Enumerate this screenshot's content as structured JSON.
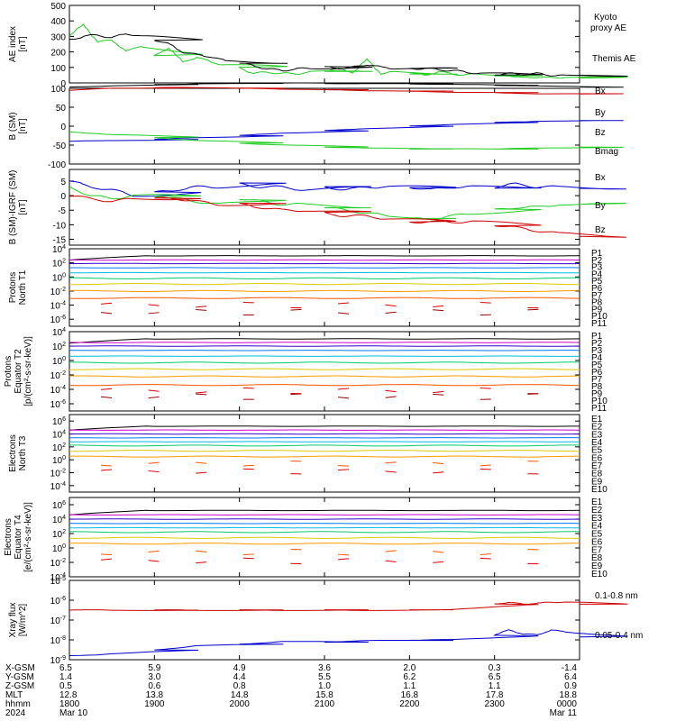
{
  "colors": {
    "black": "#000000",
    "green": "#22cc22",
    "blue": "#0000cc",
    "red": "#cc0000",
    "ch": [
      "#000000",
      "#cc00cc",
      "#3300cc",
      "#0077ff",
      "#00bbdd",
      "#00cc66",
      "#ddcc00",
      "#ff9900",
      "#ff5500",
      "#dd0000",
      "#990000"
    ]
  },
  "footer": {
    "rows": [
      {
        "label": "X-GSM",
        "values": [
          "6.5",
          "5.9",
          "4.9",
          "3.6",
          "2.0",
          "0.3",
          "-1.4"
        ]
      },
      {
        "label": "Y-GSM",
        "values": [
          "1.4",
          "3.0",
          "4.4",
          "5.5",
          "6.2",
          "6.5",
          "6.4"
        ]
      },
      {
        "label": "Z-GSM",
        "values": [
          "0.5",
          "0.6",
          "0.8",
          "1.0",
          "1.1",
          "1.1",
          "0.9"
        ]
      },
      {
        "label": "MLT",
        "values": [
          "12.8",
          "13.8",
          "14.8",
          "15.8",
          "16.8",
          "17.8",
          "18.8"
        ]
      },
      {
        "label": "hhmm",
        "values": [
          "1800",
          "1900",
          "2000",
          "2100",
          "2200",
          "2300",
          "0000"
        ]
      },
      {
        "label": "2024",
        "values": [
          "Mar 10",
          "",
          "",
          "",
          "",
          "",
          "Mar 11"
        ]
      }
    ]
  },
  "chart_data": [
    {
      "type": "line",
      "panel": "ae",
      "ylabel": [
        "AE index",
        "[nT]"
      ],
      "ylim": [
        0,
        500
      ],
      "yticks": [
        "500",
        "400",
        "300",
        "200",
        "100",
        "0"
      ],
      "x": [
        1800,
        1810,
        1820,
        1830,
        1840,
        1850,
        1900,
        1910,
        1920,
        1930,
        1940,
        1950,
        2000,
        2010,
        2020,
        2030,
        2040,
        2050,
        2100,
        2110,
        2120,
        2130,
        2140,
        2150,
        2200,
        2210,
        2220,
        2230,
        2240,
        2250,
        2300,
        2310,
        2320,
        2330,
        2340,
        2350,
        2400
      ],
      "series": [
        {
          "name": "Kyoto proxy AE",
          "color": "#22cc22",
          "values": [
            300,
            380,
            260,
            280,
            200,
            240,
            170,
            230,
            130,
            170,
            130,
            120,
            100,
            60,
            70,
            60,
            60,
            70,
            80,
            90,
            70,
            150,
            60,
            70,
            60,
            50,
            70,
            60,
            50,
            60,
            40,
            50,
            30,
            40,
            30,
            40,
            30
          ]
        },
        {
          "name": "Themis AE",
          "color": "#000000",
          "values": [
            280,
            300,
            310,
            290,
            320,
            300,
            280,
            250,
            200,
            180,
            170,
            140,
            130,
            110,
            90,
            80,
            90,
            95,
            100,
            95,
            100,
            120,
            100,
            95,
            90,
            95,
            85,
            80,
            70,
            60,
            55,
            60,
            55,
            60,
            50,
            45,
            50
          ]
        }
      ]
    },
    {
      "type": "line",
      "panel": "bsm",
      "ylabel": [
        "B (SM)",
        "[nT]"
      ],
      "ylim": [
        -100,
        100
      ],
      "yticks": [
        "100",
        "50",
        "0",
        "-50",
        "-100"
      ],
      "x": [
        1800,
        1830,
        1900,
        1930,
        2000,
        2030,
        2100,
        2130,
        2200,
        2230,
        2300,
        2330,
        2400
      ],
      "series": [
        {
          "name": "Bx",
          "color": "#0000cc",
          "values": [
            -40,
            -38,
            -35,
            -30,
            -25,
            -18,
            -12,
            -6,
            0,
            5,
            10,
            13,
            15
          ]
        },
        {
          "name": "By",
          "color": "#22cc22",
          "values": [
            -15,
            -22,
            -30,
            -38,
            -45,
            -50,
            -55,
            -58,
            -60,
            -60,
            -60,
            -58,
            -55
          ]
        },
        {
          "name": "Bz",
          "color": "#cc0000",
          "values": [
            95,
            100,
            102,
            102,
            100,
            98,
            96,
            94,
            92,
            90,
            88,
            86,
            85
          ]
        },
        {
          "name": "Bmag",
          "color": "#000000",
          "values": [
            103,
            107,
            110,
            112,
            113,
            114,
            113,
            112,
            112,
            110,
            108,
            106,
            103
          ]
        }
      ]
    },
    {
      "type": "line",
      "panel": "dbsm",
      "ylabel": [
        "B (SM)-IGRF (SM)",
        "[nT]"
      ],
      "ylim": [
        -17,
        9
      ],
      "yticks": [
        "5",
        "0",
        "-5",
        "-10",
        "-15"
      ],
      "x": [
        1800,
        1815,
        1830,
        1845,
        1900,
        1915,
        1930,
        1945,
        2000,
        2015,
        2030,
        2045,
        2100,
        2115,
        2130,
        2145,
        2200,
        2215,
        2230,
        2245,
        2300,
        2315,
        2330,
        2345,
        2400
      ],
      "series": [
        {
          "name": "Bx",
          "color": "#0000cc",
          "values": [
            5,
            3,
            2,
            0,
            1,
            2,
            3,
            3,
            4,
            3,
            3,
            2,
            3,
            2,
            3,
            3,
            3,
            2,
            3,
            3,
            3,
            4,
            3,
            3,
            2.5
          ]
        },
        {
          "name": "By",
          "color": "#22cc22",
          "values": [
            3,
            0,
            -1,
            0,
            0,
            -1,
            -2,
            -3,
            -1,
            -2,
            -3,
            -3,
            -4,
            -5,
            -6,
            -7,
            -8,
            -8,
            -7,
            -6,
            -5,
            -4,
            -4,
            -3,
            -3
          ]
        },
        {
          "name": "Bz",
          "color": "#cc0000",
          "values": [
            0,
            -1,
            -2,
            -1,
            -1,
            -1,
            -2,
            -3,
            -3,
            -4,
            -5,
            -5,
            -6,
            -7,
            -7,
            -8,
            -9,
            -9,
            -9,
            -9,
            -10,
            -11,
            -12,
            -13,
            -14
          ]
        }
      ]
    },
    {
      "type": "line",
      "panel": "pn",
      "ylabel": [
        "Protons",
        "North T1"
      ],
      "ylog": true,
      "ylim_exp": [
        -7,
        4
      ],
      "ytick_exp": [
        4,
        2,
        0,
        -2,
        -4,
        -6
      ],
      "channels": [
        "P1",
        "P2",
        "P3",
        "P4",
        "P5",
        "P6",
        "P7",
        "P8",
        "P9",
        "P10",
        "P11"
      ],
      "levels_exp": [
        3.0,
        2.4,
        1.9,
        1.3,
        0.6,
        -0.2,
        -1.0,
        -2.0,
        -3.0,
        -4.0,
        -5.0
      ]
    },
    {
      "type": "line",
      "panel": "pe",
      "ylabel": [
        "Protons",
        "Equator T2",
        "[p/(cm²-s-sr-keV)]"
      ],
      "ylog": true,
      "ylim_exp": [
        -7,
        4
      ],
      "ytick_exp": [
        4,
        2,
        0,
        -2,
        -4,
        -6
      ],
      "channels": [
        "P1",
        "P2",
        "P3",
        "P4",
        "P5",
        "P6",
        "P7",
        "P8",
        "P9",
        "P10",
        "P11"
      ],
      "levels_exp": [
        3.0,
        2.5,
        2.0,
        1.4,
        0.6,
        -0.3,
        -1.2,
        -2.2,
        -3.4,
        -4.2,
        -5.0
      ]
    },
    {
      "type": "line",
      "panel": "en",
      "ylabel": [
        "Electrons",
        "North T3"
      ],
      "ylog": true,
      "ylim_exp": [
        -5,
        7
      ],
      "ytick_exp": [
        6,
        4,
        2,
        0,
        -2,
        -4
      ],
      "channels": [
        "E1",
        "E2",
        "E3",
        "E4",
        "E5",
        "E6",
        "E7",
        "E8",
        "E9",
        "E10"
      ],
      "levels_exp": [
        5.2,
        4.6,
        4.0,
        3.4,
        2.8,
        2.2,
        1.4,
        0.5,
        -0.6,
        -1.8
      ]
    },
    {
      "type": "line",
      "panel": "ee",
      "ylabel": [
        "Electrons",
        "Equator T4",
        "[e/(cm²-s-sr-keV)]"
      ],
      "ylog": true,
      "ylim_exp": [
        -4,
        7
      ],
      "ytick_exp": [
        6,
        4,
        2,
        0,
        -2,
        -4
      ],
      "channels": [
        "E1",
        "E2",
        "E3",
        "E4",
        "E5",
        "E6",
        "E7",
        "E8",
        "E9",
        "E10"
      ],
      "levels_exp": [
        5.2,
        4.6,
        4.0,
        3.4,
        2.8,
        2.2,
        1.4,
        0.6,
        -0.6,
        -1.8
      ]
    },
    {
      "type": "line",
      "panel": "xray",
      "ylabel": [
        "Xray flux",
        "[W/m^2]"
      ],
      "ylog": true,
      "ylim_exp": [
        -9,
        -5
      ],
      "ytick_exp": [
        -5,
        -6,
        -7,
        -8,
        -9
      ],
      "x": [
        1800,
        1830,
        1900,
        1930,
        2000,
        2030,
        2100,
        2130,
        2200,
        2230,
        2300,
        2310,
        2320,
        2330,
        2340,
        2350,
        2400
      ],
      "series": [
        {
          "name": "0.1-0.8 nm",
          "color": "#cc0000",
          "values_exp": [
            -6.5,
            -6.5,
            -6.5,
            -6.5,
            -6.5,
            -6.5,
            -6.5,
            -6.5,
            -6.5,
            -6.45,
            -6.2,
            -6.1,
            -6.2,
            -6.15,
            -6.1,
            -6.1,
            -6.2
          ]
        },
        {
          "name": "0.05-0.4 nm",
          "color": "#0000cc",
          "values_exp": [
            -8.8,
            -8.7,
            -8.5,
            -8.3,
            -8.2,
            -8.1,
            -8.1,
            -8.05,
            -8.0,
            -8.0,
            -7.75,
            -7.5,
            -7.7,
            -7.75,
            -7.5,
            -7.6,
            -7.85
          ]
        }
      ]
    }
  ]
}
